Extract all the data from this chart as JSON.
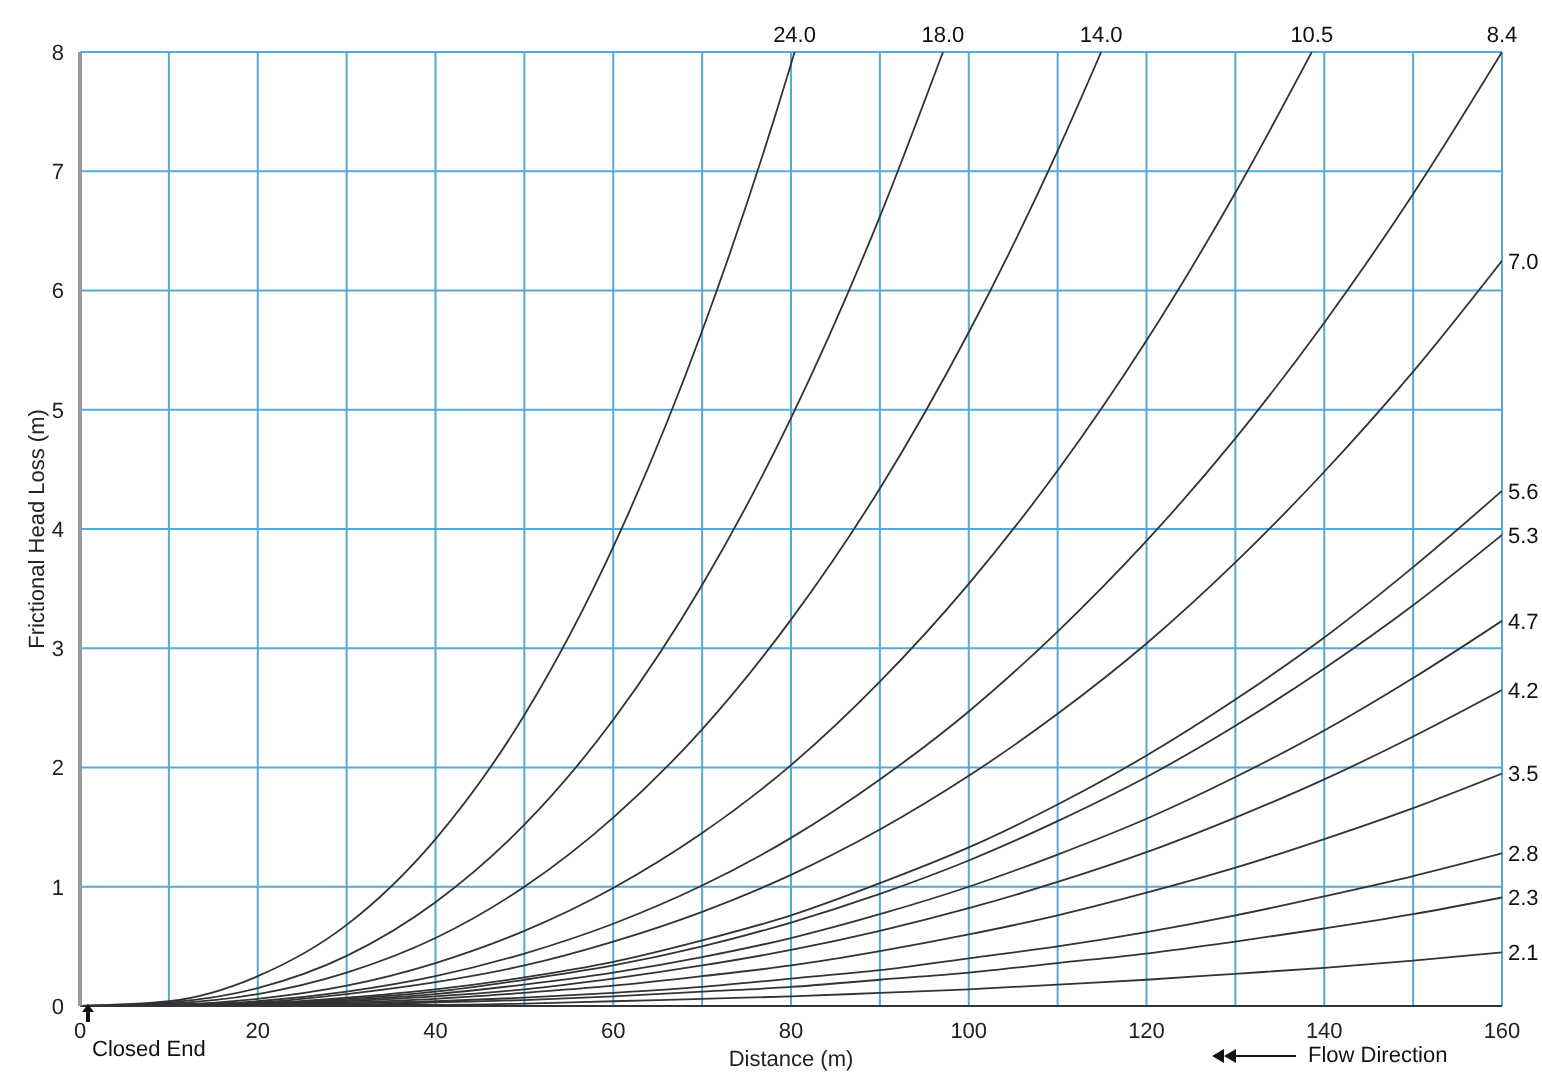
{
  "chart_data": {
    "type": "line",
    "xlabel": "Distance (m)",
    "ylabel": "Frictional Head Loss (m)",
    "xlim": [
      0,
      160
    ],
    "ylim": [
      0,
      8
    ],
    "xticks": [
      0,
      {
        "value": 10,
        "label": null
      },
      20,
      {
        "value": 30,
        "label": null
      },
      40,
      {
        "value": 50,
        "label": null
      },
      60,
      {
        "value": 70,
        "label": null
      },
      80,
      {
        "value": 90,
        "label": null
      },
      100,
      {
        "value": 110,
        "label": null
      },
      120,
      {
        "value": 130,
        "label": null
      },
      140,
      {
        "value": 150,
        "label": null
      },
      160
    ],
    "yticks": [
      0,
      1,
      2,
      3,
      4,
      5,
      6,
      7,
      8
    ],
    "grid": true,
    "legend": false,
    "marker": "none",
    "line_style": "solid",
    "annotations": [
      "Closed End",
      "Flow Direction"
    ],
    "series": [
      {
        "name": "24.0",
        "color": "#333333",
        "x": [
          0,
          10,
          20,
          30,
          40,
          50,
          60,
          70,
          80,
          80.4
        ],
        "values": [
          0,
          0.04,
          0.25,
          0.68,
          1.4,
          2.44,
          3.85,
          5.66,
          7.9,
          8
        ]
      },
      {
        "name": "18.0",
        "color": "#333333",
        "x": [
          0,
          10,
          20,
          30,
          40,
          50,
          60,
          70,
          80,
          90,
          97.1
        ],
        "values": [
          0,
          0.03,
          0.15,
          0.42,
          0.87,
          1.52,
          2.4,
          3.53,
          4.93,
          6.62,
          8
        ]
      },
      {
        "name": "14.0",
        "color": "#333333",
        "x": [
          0,
          10,
          20,
          30,
          40,
          50,
          60,
          70,
          80,
          90,
          100,
          110,
          114.9
        ],
        "values": [
          0,
          0.02,
          0.1,
          0.28,
          0.57,
          1.0,
          1.58,
          2.32,
          3.24,
          4.34,
          5.65,
          7.17,
          8
        ]
      },
      {
        "name": "10.5",
        "color": "#333333",
        "x": [
          0,
          10,
          20,
          30,
          40,
          50,
          60,
          70,
          80,
          90,
          100,
          110,
          120,
          130,
          138.6
        ],
        "values": [
          0,
          0.01,
          0.06,
          0.17,
          0.36,
          0.63,
          0.99,
          1.45,
          2.02,
          2.72,
          3.54,
          4.49,
          5.58,
          6.82,
          8
        ]
      },
      {
        "name": "8.4",
        "color": "#333333",
        "x": [
          0,
          10,
          20,
          30,
          40,
          50,
          60,
          70,
          80,
          90,
          100,
          110,
          120,
          130,
          140,
          150,
          160
        ],
        "values": [
          0,
          0.01,
          0.04,
          0.12,
          0.25,
          0.44,
          0.69,
          1.01,
          1.41,
          1.9,
          2.47,
          3.14,
          3.9,
          4.76,
          5.73,
          6.81,
          8.0
        ]
      },
      {
        "name": "7.0",
        "color": "#333333",
        "x": [
          0,
          10,
          20,
          30,
          40,
          50,
          60,
          70,
          80,
          90,
          100,
          110,
          120,
          130,
          140,
          150,
          160
        ],
        "values": [
          0,
          0.01,
          0.03,
          0.1,
          0.2,
          0.34,
          0.54,
          0.79,
          1.1,
          1.48,
          1.93,
          2.45,
          3.04,
          3.72,
          4.48,
          5.32,
          6.25
        ]
      },
      {
        "name": "5.6",
        "color": "#333333",
        "x": [
          0,
          10,
          20,
          30,
          40,
          50,
          60,
          70,
          80,
          90,
          100,
          110,
          120,
          130,
          140,
          150,
          160
        ],
        "values": [
          0,
          0.0,
          0.02,
          0.07,
          0.14,
          0.24,
          0.37,
          0.55,
          0.76,
          1.03,
          1.33,
          1.69,
          2.1,
          2.57,
          3.09,
          3.68,
          4.32
        ]
      },
      {
        "name": "5.3",
        "color": "#333333",
        "x": [
          0,
          10,
          20,
          30,
          40,
          50,
          60,
          70,
          80,
          90,
          100,
          110,
          120,
          130,
          140,
          150,
          160
        ],
        "values": [
          0,
          0.0,
          0.02,
          0.06,
          0.12,
          0.22,
          0.34,
          0.5,
          0.7,
          0.94,
          1.22,
          1.55,
          1.92,
          2.35,
          2.83,
          3.36,
          3.95
        ]
      },
      {
        "name": "4.7",
        "color": "#333333",
        "x": [
          0,
          10,
          20,
          30,
          40,
          50,
          60,
          70,
          80,
          90,
          100,
          110,
          120,
          130,
          140,
          150,
          160
        ],
        "values": [
          0,
          0.0,
          0.02,
          0.05,
          0.1,
          0.18,
          0.28,
          0.41,
          0.57,
          0.77,
          1.0,
          1.27,
          1.57,
          1.92,
          2.31,
          2.75,
          3.23
        ]
      },
      {
        "name": "4.2",
        "color": "#333333",
        "x": [
          0,
          10,
          20,
          30,
          40,
          50,
          60,
          70,
          80,
          90,
          100,
          110,
          120,
          130,
          140,
          150,
          160
        ],
        "values": [
          0,
          0.0,
          0.01,
          0.04,
          0.08,
          0.14,
          0.23,
          0.34,
          0.47,
          0.63,
          0.82,
          1.04,
          1.29,
          1.58,
          1.9,
          2.26,
          2.65
        ]
      },
      {
        "name": "3.5",
        "color": "#333333",
        "x": [
          0,
          10,
          20,
          30,
          40,
          50,
          60,
          70,
          80,
          90,
          100,
          110,
          120,
          130,
          140,
          150,
          160
        ],
        "values": [
          0,
          0.0,
          0.01,
          0.03,
          0.06,
          0.11,
          0.17,
          0.25,
          0.34,
          0.46,
          0.6,
          0.76,
          0.95,
          1.16,
          1.4,
          1.66,
          1.95
        ]
      },
      {
        "name": "2.8",
        "color": "#333333",
        "x": [
          0,
          10,
          20,
          30,
          40,
          50,
          60,
          70,
          80,
          90,
          100,
          110,
          120,
          130,
          140,
          150,
          160
        ],
        "values": [
          0,
          0.0,
          0.01,
          0.02,
          0.04,
          0.07,
          0.11,
          0.16,
          0.23,
          0.3,
          0.4,
          0.5,
          0.62,
          0.76,
          0.92,
          1.09,
          1.28
        ]
      },
      {
        "name": "2.3",
        "color": "#333333",
        "x": [
          0,
          10,
          20,
          30,
          40,
          50,
          60,
          70,
          80,
          90,
          100,
          110,
          120,
          130,
          140,
          150,
          160
        ],
        "values": [
          0,
          0.0,
          0.01,
          0.01,
          0.03,
          0.05,
          0.08,
          0.12,
          0.16,
          0.22,
          0.28,
          0.36,
          0.44,
          0.54,
          0.65,
          0.77,
          0.91
        ]
      },
      {
        "name": "2.1",
        "color": "#333333",
        "x": [
          0,
          10,
          20,
          30,
          40,
          50,
          60,
          70,
          80,
          90,
          100,
          110,
          120,
          130,
          140,
          150,
          160
        ],
        "values": [
          0,
          0.0,
          0.0,
          0.01,
          0.01,
          0.02,
          0.04,
          0.06,
          0.08,
          0.11,
          0.14,
          0.18,
          0.22,
          0.27,
          0.32,
          0.38,
          0.45
        ]
      }
    ]
  }
}
